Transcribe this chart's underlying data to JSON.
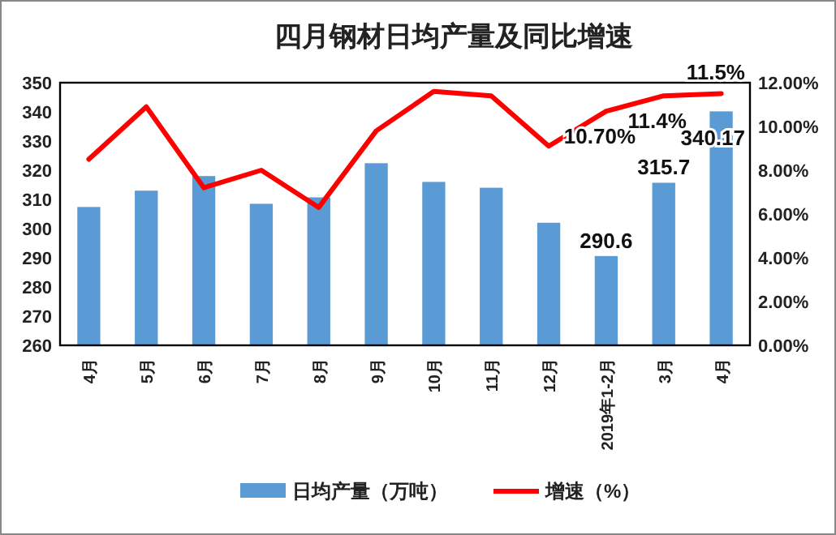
{
  "chart_data": {
    "type": "bar",
    "title": "四月钢材日均产量及同比增速",
    "categories": [
      "4月",
      "5月",
      "6月",
      "7月",
      "8月",
      "9月",
      "10月",
      "11月",
      "12月",
      "2019年1-2月",
      "3月",
      "4月"
    ],
    "series": [
      {
        "name": "日均产量（万吨）",
        "color": "#5b9bd5",
        "values": [
          307.4,
          313,
          318,
          308.5,
          310.7,
          322.4,
          316,
          314,
          302,
          290.6,
          315.7,
          340.17
        ],
        "value_labels": [
          null,
          null,
          null,
          null,
          null,
          null,
          null,
          null,
          null,
          "290.6",
          "315.7",
          "340.17"
        ]
      },
      {
        "name": "增速（%）",
        "type": "line",
        "axis": "y2",
        "color": "#ff0000",
        "values": [
          8.5,
          10.9,
          7.2,
          8.0,
          6.3,
          9.8,
          11.6,
          11.4,
          9.1,
          10.7,
          11.4,
          11.5
        ],
        "value_labels": [
          null,
          null,
          null,
          null,
          null,
          null,
          null,
          null,
          null,
          "10.70%",
          "11.4%",
          "11.5%"
        ]
      }
    ],
    "ylim": [
      260,
      350
    ],
    "yticks": [
      260,
      270,
      280,
      290,
      300,
      310,
      320,
      330,
      340,
      350
    ],
    "y2lim": [
      0,
      12
    ],
    "y2ticks": [
      {
        "value": 0,
        "label": "0.00%"
      },
      {
        "value": 2,
        "label": "2.00%"
      },
      {
        "value": 4,
        "label": "4.00%"
      },
      {
        "value": 6,
        "label": "6.00%"
      },
      {
        "value": 8,
        "label": "8.00%"
      },
      {
        "value": 10,
        "label": "10.00%"
      },
      {
        "value": 12,
        "label": "12.00%"
      }
    ],
    "legend": "bottom",
    "marker": "none",
    "line_style": "solid",
    "grid": false
  }
}
